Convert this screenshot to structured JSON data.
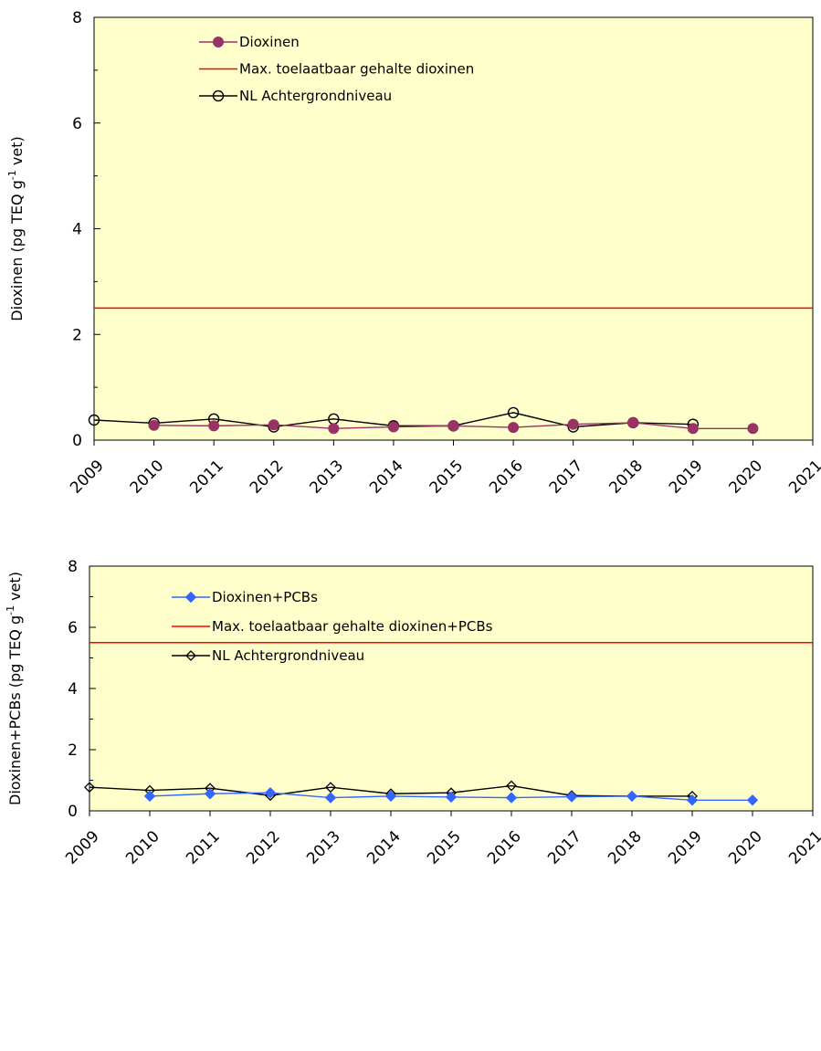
{
  "chart_data": [
    {
      "type": "line",
      "ylabel_main": "Dioxinen  (pg TEQ g",
      "ylabel_sup": "-1",
      "ylabel_end": " vet)",
      "xlim": [
        2009,
        2021
      ],
      "ylim": [
        0,
        8
      ],
      "yticks": [
        0,
        2,
        4,
        6,
        8
      ],
      "xticks": [
        2009,
        2010,
        2011,
        2012,
        2013,
        2014,
        2015,
        2016,
        2017,
        2018,
        2019,
        2020,
        2021
      ],
      "grid": false,
      "background": "#ffffcc",
      "legend_position": "top-center",
      "series": [
        {
          "name": "Dioxinen",
          "color": "#993366",
          "marker": "filled-circle",
          "points": [
            [
              2010,
              0.28
            ],
            [
              2011,
              0.27
            ],
            [
              2012,
              0.29
            ],
            [
              2013,
              0.22
            ],
            [
              2014,
              0.25
            ],
            [
              2015,
              0.27
            ],
            [
              2016,
              0.24
            ],
            [
              2017,
              0.3
            ],
            [
              2018,
              0.33
            ],
            [
              2019,
              0.22
            ],
            [
              2020,
              0.22
            ]
          ]
        },
        {
          "name": "Max. toelaatbaar gehalte dioxinen",
          "color": "#ff0000",
          "marker": "none",
          "points": [
            [
              2009,
              2.5
            ],
            [
              2021,
              2.5
            ]
          ]
        },
        {
          "name": "NL Achtergrondniveau",
          "color": "#000000",
          "marker": "open-circle",
          "points": [
            [
              2009,
              0.38
            ],
            [
              2010,
              0.32
            ],
            [
              2011,
              0.4
            ],
            [
              2012,
              0.25
            ],
            [
              2013,
              0.4
            ],
            [
              2014,
              0.27
            ],
            [
              2015,
              0.27
            ],
            [
              2016,
              0.52
            ],
            [
              2017,
              0.25
            ],
            [
              2018,
              0.33
            ],
            [
              2019,
              0.3
            ]
          ]
        }
      ]
    },
    {
      "type": "line",
      "ylabel_main": "Dioxinen+PCBs  (pg TEQ g",
      "ylabel_sup": "-1",
      "ylabel_end": " vet)",
      "xlim": [
        2009,
        2021
      ],
      "ylim": [
        0,
        8
      ],
      "yticks": [
        0,
        2,
        4,
        6,
        8
      ],
      "xticks": [
        2009,
        2010,
        2011,
        2012,
        2013,
        2014,
        2015,
        2016,
        2017,
        2018,
        2019,
        2020,
        2021
      ],
      "grid": false,
      "background": "#ffffcc",
      "legend_position": "top-center",
      "series": [
        {
          "name": "Dioxinen+PCBs",
          "color": "#3366ff",
          "marker": "filled-diamond",
          "points": [
            [
              2010,
              0.48
            ],
            [
              2011,
              0.56
            ],
            [
              2012,
              0.59
            ],
            [
              2013,
              0.43
            ],
            [
              2014,
              0.48
            ],
            [
              2015,
              0.45
            ],
            [
              2016,
              0.43
            ],
            [
              2017,
              0.46
            ],
            [
              2018,
              0.48
            ],
            [
              2019,
              0.35
            ],
            [
              2020,
              0.35
            ]
          ]
        },
        {
          "name": "Max. toelaatbaar gehalte dioxinen+PCBs",
          "color": "#ff0000",
          "marker": "none",
          "points": [
            [
              2009,
              5.5
            ],
            [
              2021,
              5.5
            ]
          ]
        },
        {
          "name": "NL Achtergrondniveau",
          "color": "#000000",
          "marker": "open-diamond",
          "points": [
            [
              2009,
              0.77
            ],
            [
              2010,
              0.67
            ],
            [
              2011,
              0.74
            ],
            [
              2012,
              0.5
            ],
            [
              2013,
              0.77
            ],
            [
              2014,
              0.56
            ],
            [
              2015,
              0.59
            ],
            [
              2016,
              0.82
            ],
            [
              2017,
              0.5
            ],
            [
              2018,
              0.48
            ],
            [
              2019,
              0.48
            ]
          ]
        }
      ]
    }
  ]
}
